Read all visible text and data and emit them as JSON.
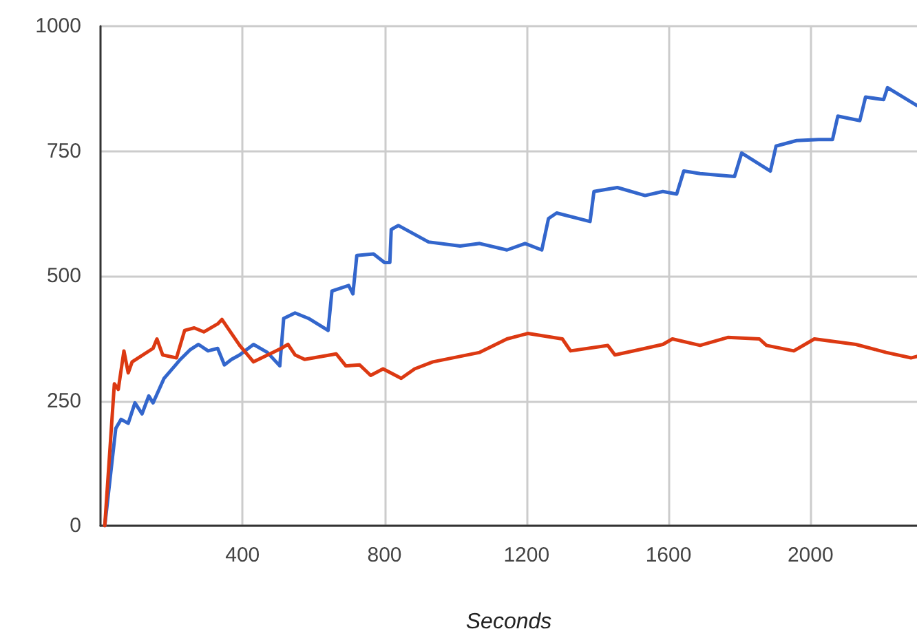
{
  "chart_data": {
    "type": "line",
    "xlabel": "Seconds",
    "xlim": [
      0,
      2300
    ],
    "xticks": [
      400,
      800,
      1200,
      1600,
      2000
    ],
    "ylim": [
      0,
      1000
    ],
    "yticks": [
      0,
      250,
      500,
      750,
      1000
    ],
    "grid": true,
    "marker": "none",
    "line_style": "solid",
    "series": [
      {
        "color": "#3366cc",
        "x": [
          12,
          43,
          58,
          78,
          97,
          117,
          136,
          148,
          179,
          225,
          252,
          276,
          303,
          330,
          349,
          369,
          392,
          431,
          470,
          505,
          516,
          548,
          586,
          641,
          652,
          699,
          711,
          722,
          769,
          800,
          815,
          819,
          839,
          924,
          1013,
          1068,
          1145,
          1196,
          1243,
          1262,
          1285,
          1379,
          1390,
          1456,
          1534,
          1584,
          1623,
          1643,
          1689,
          1786,
          1806,
          1887,
          1903,
          1961,
          2023,
          2062,
          2077,
          2139,
          2155,
          2206,
          2217,
          2300
        ],
        "values": [
          0,
          195,
          213,
          205,
          246,
          224,
          260,
          246,
          295,
          333,
          352,
          363,
          350,
          355,
          322,
          333,
          342,
          363,
          347,
          320,
          415,
          426,
          415,
          391,
          470,
          481,
          464,
          541,
          544,
          527,
          527,
          593,
          601,
          568,
          560,
          565,
          552,
          565,
          552,
          615,
          626,
          609,
          669,
          677,
          661,
          669,
          664,
          710,
          705,
          699,
          746,
          710,
          760,
          771,
          773,
          773,
          820,
          811,
          858,
          853,
          877,
          841
        ]
      },
      {
        "color": "#dc3912",
        "x": [
          12,
          39,
          50,
          66,
          78,
          89,
          148,
          159,
          175,
          214,
          237,
          264,
          291,
          330,
          342,
          392,
          431,
          509,
          528,
          548,
          575,
          664,
          691,
          730,
          761,
          796,
          847,
          885,
          936,
          1068,
          1145,
          1204,
          1301,
          1324,
          1429,
          1449,
          1534,
          1584,
          1611,
          1689,
          1767,
          1856,
          1876,
          1953,
          2011,
          2128,
          2213,
          2283,
          2300
        ],
        "values": [
          0,
          284,
          273,
          350,
          306,
          328,
          355,
          374,
          342,
          336,
          391,
          396,
          388,
          404,
          413,
          361,
          328,
          355,
          363,
          342,
          333,
          344,
          320,
          322,
          301,
          314,
          295,
          314,
          328,
          347,
          374,
          385,
          374,
          350,
          361,
          342,
          355,
          363,
          374,
          361,
          377,
          374,
          361,
          350,
          374,
          363,
          347,
          336,
          339
        ]
      }
    ]
  }
}
